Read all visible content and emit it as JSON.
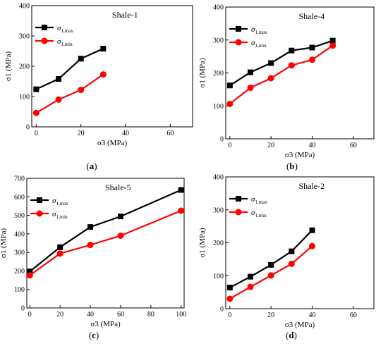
{
  "figure_labels": [
    "(a)",
    "(b)",
    "(c)",
    "(d)"
  ],
  "legend": {
    "max_symbol": "σ",
    "max_sub": "1,max",
    "min_symbol": "σ",
    "min_sub": "1,min"
  },
  "colors": {
    "max_series": "#000000",
    "min_series": "#ff0000"
  },
  "chart_data": [
    {
      "type": "line",
      "title": "Shale-1",
      "xlabel": "σ3 (MPa)",
      "ylabel": "σ1 (MPa)",
      "xlim": [
        -2,
        70
      ],
      "ylim": [
        0,
        400
      ],
      "xticks": [
        0,
        20,
        40,
        60
      ],
      "yticks": [
        0,
        100,
        200,
        300,
        400
      ],
      "legend_position": "top-left",
      "series": [
        {
          "name": "σ1,max",
          "marker": "square",
          "x": [
            0,
            10,
            20,
            30
          ],
          "y": [
            124,
            158,
            225,
            258
          ]
        },
        {
          "name": "σ1,min",
          "marker": "circle",
          "x": [
            0,
            10,
            20,
            30
          ],
          "y": [
            46,
            90,
            122,
            173
          ]
        }
      ]
    },
    {
      "type": "line",
      "title": "Shale-4",
      "xlabel": "σ3 (MPa)",
      "ylabel": "σ1 (MPa)",
      "xlim": [
        -2,
        70
      ],
      "ylim": [
        0,
        400
      ],
      "xticks": [
        0,
        20,
        40,
        60
      ],
      "yticks": [
        0,
        100,
        200,
        300,
        400
      ],
      "legend_position": "top-left",
      "series": [
        {
          "name": "σ1,max",
          "marker": "square",
          "x": [
            0,
            10,
            20,
            30,
            40,
            50
          ],
          "y": [
            162,
            202,
            230,
            268,
            277,
            298
          ]
        },
        {
          "name": "σ1,min",
          "marker": "circle",
          "x": [
            0,
            10,
            20,
            30,
            40,
            50
          ],
          "y": [
            106,
            155,
            184,
            223,
            240,
            283
          ]
        }
      ]
    },
    {
      "type": "line",
      "title": "Shale-5",
      "xlabel": "σ3 (MPa)",
      "ylabel": "σ1 (MPa)",
      "xlim": [
        -2,
        102
      ],
      "ylim": [
        0,
        700
      ],
      "xticks": [
        0,
        20,
        40,
        60,
        80,
        100
      ],
      "yticks": [
        0,
        100,
        200,
        300,
        400,
        500,
        600,
        700
      ],
      "legend_position": "top-left",
      "series": [
        {
          "name": "σ1,max",
          "marker": "square",
          "x": [
            0,
            20,
            40,
            60,
            100
          ],
          "y": [
            197,
            328,
            437,
            494,
            637
          ]
        },
        {
          "name": "σ1,min",
          "marker": "circle",
          "x": [
            0,
            20,
            40,
            60,
            100
          ],
          "y": [
            176,
            294,
            340,
            390,
            525
          ]
        }
      ]
    },
    {
      "type": "line",
      "title": "Shale-2",
      "xlabel": "σ3 (MPa)",
      "ylabel": "σ1 (MPa)",
      "xlim": [
        -2,
        70
      ],
      "ylim": [
        0,
        400
      ],
      "xticks": [
        0,
        20,
        40,
        60
      ],
      "yticks": [
        0,
        100,
        200,
        300,
        400
      ],
      "legend_position": "top-left",
      "series": [
        {
          "name": "σ1,max",
          "marker": "square",
          "x": [
            0,
            10,
            20,
            30,
            40
          ],
          "y": [
            64,
            97,
            133,
            174,
            238
          ]
        },
        {
          "name": "σ1,min",
          "marker": "circle",
          "x": [
            0,
            10,
            20,
            30,
            40
          ],
          "y": [
            30,
            66,
            101,
            136,
            190
          ]
        }
      ]
    }
  ]
}
